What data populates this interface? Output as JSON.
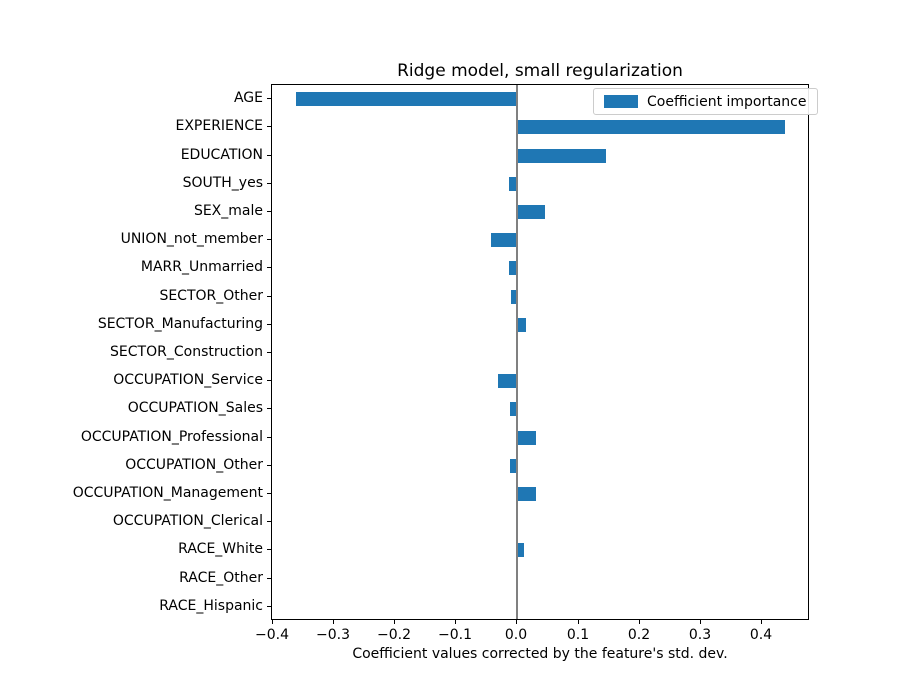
{
  "chart_data": {
    "type": "bar",
    "orientation": "horizontal",
    "title": "Ridge model, small regularization",
    "xlabel": "Coefficient values corrected by the feature's std. dev.",
    "ylabel": "",
    "legend": {
      "label": "Coefficient importance",
      "position": "upper right"
    },
    "categories": [
      "AGE",
      "EXPERIENCE",
      "EDUCATION",
      "SOUTH_yes",
      "SEX_male",
      "UNION_not_member",
      "MARR_Unmarried",
      "SECTOR_Other",
      "SECTOR_Manufacturing",
      "SECTOR_Construction",
      "OCCUPATION_Service",
      "OCCUPATION_Sales",
      "OCCUPATION_Professional",
      "OCCUPATION_Other",
      "OCCUPATION_Management",
      "OCCUPATION_Clerical",
      "RACE_White",
      "RACE_Other",
      "RACE_Hispanic"
    ],
    "values": [
      -0.362,
      0.438,
      0.146,
      -0.014,
      0.046,
      -0.044,
      -0.013,
      -0.011,
      0.014,
      0.0,
      -0.031,
      -0.012,
      0.031,
      -0.012,
      0.031,
      0.0,
      0.011,
      -0.003,
      0.0
    ],
    "xlim": [
      -0.401,
      0.478
    ],
    "xticks": [
      -0.4,
      -0.3,
      -0.2,
      -0.1,
      0.0,
      0.1,
      0.2,
      0.3,
      0.4
    ],
    "xtick_labels": [
      "−0.4",
      "−0.3",
      "−0.2",
      "−0.1",
      "0.0",
      "0.1",
      "0.2",
      "0.3",
      "0.4"
    ],
    "grid": false,
    "bar_color": "#1f77b4",
    "zero_line_color": "#808080",
    "zero_line_value": 0.0
  }
}
